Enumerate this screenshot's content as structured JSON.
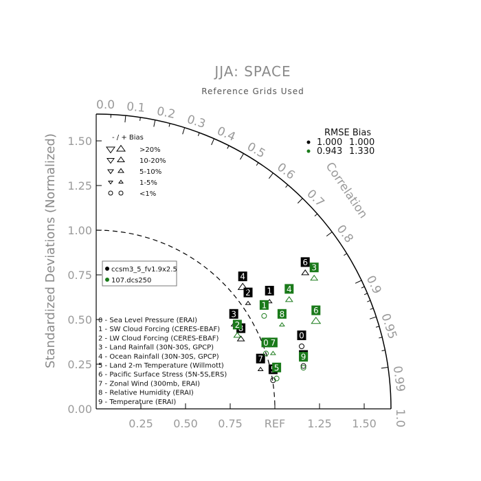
{
  "chart_data": {
    "type": "scatter",
    "title": "JJA: SPACE",
    "subtitle": "Reference Grids Used",
    "ylabel": "Standardized Deviations (Normalized)",
    "correlation_label": "Correlation",
    "ref_label": "REF",
    "max_std": 1.65,
    "x_ticks": [
      "0.25",
      "0.50",
      "0.75",
      "REF",
      "1.25",
      "1.50"
    ],
    "x_tick_values": [
      0.25,
      0.5,
      0.75,
      1.0,
      1.25,
      1.5
    ],
    "y_ticks": [
      "0.00",
      "0.25",
      "0.50",
      "0.75",
      "1.00",
      "1.25",
      "1.50"
    ],
    "y_tick_values": [
      0,
      0.25,
      0.5,
      0.75,
      1.0,
      1.25,
      1.5
    ],
    "corr_ticks": [
      "0.0",
      "0.1",
      "0.2",
      "0.3",
      "0.4",
      "0.5",
      "0.6",
      "0.7",
      "0.8",
      "0.9",
      "0.95",
      "0.99",
      "1.0"
    ],
    "corr_tick_values": [
      0.0,
      0.1,
      0.2,
      0.3,
      0.4,
      0.5,
      0.6,
      0.7,
      0.8,
      0.9,
      0.95,
      0.99,
      1.0
    ],
    "corr_small_ticks": [
      0.05,
      0.15,
      0.25,
      0.35,
      0.45,
      0.55,
      0.65,
      0.75,
      0.85,
      0.91,
      0.92,
      0.93,
      0.94,
      0.96,
      0.97,
      0.98
    ],
    "bias_legend": {
      "header": "- / +    Bias",
      "rows": [
        ">20%",
        "10-20%",
        "5-10%",
        "1-5%",
        "<1%"
      ]
    },
    "rmse_table": {
      "header": "RMSE  Bias",
      "rows": [
        {
          "rmse": "1.000",
          "bias": "1.000",
          "color": "#000000"
        },
        {
          "rmse": "0.943",
          "bias": "1.330",
          "color": "#1a7a1a"
        }
      ]
    },
    "cases_legend": [
      {
        "label": "ccsm3_5_fv1.9x2.5",
        "color": "#000000"
      },
      {
        "label": "107.dcs250",
        "color": "#1a7a1a"
      }
    ],
    "variables": [
      "0 - Sea Level Pressure (ERAI)",
      "1 - SW Cloud Forcing (CERES-EBAF)",
      "2 - LW Cloud Forcing (CERES-EBAF)",
      "3 - Land Rainfall (30N-30S, GPCP)",
      "4 - Ocean Rainfall (30N-30S, GPCP)",
      "5 - Land 2-m Temperature (Willmott)",
      "6 - Pacific Surface Stress (5N-5S,ERS)",
      "7 - Zonal Wind (300mb, ERAI)",
      "8 - Relative Humidity (ERAI)",
      "9 - Temperature (ERAI)"
    ],
    "series": [
      {
        "name": "ccsm3_5_fv1.9x2.5",
        "color": "#000000",
        "points": [
          {
            "id": "0",
            "x": 1.15,
            "y": 0.35,
            "marker": "circle"
          },
          {
            "id": "1",
            "x": 0.97,
            "y": 0.6,
            "marker": "up-small"
          },
          {
            "id": "2",
            "x": 0.85,
            "y": 0.59,
            "marker": "up-small"
          },
          {
            "id": "3",
            "x": 0.77,
            "y": 0.47,
            "marker": "up-small"
          },
          {
            "id": "4",
            "x": 0.82,
            "y": 0.68,
            "marker": "up-large"
          },
          {
            "id": "5",
            "x": 0.99,
            "y": 0.16,
            "marker": "circle"
          },
          {
            "id": "6",
            "x": 1.17,
            "y": 0.76,
            "marker": "up-medium"
          },
          {
            "id": "7",
            "x": 0.92,
            "y": 0.22,
            "marker": "up-small"
          },
          {
            "id": "8",
            "x": 0.81,
            "y": 0.39,
            "marker": "up-medium"
          },
          {
            "id": "9",
            "x": 1.16,
            "y": 0.24,
            "marker": "circle"
          }
        ]
      },
      {
        "name": "107.dcs250",
        "color": "#1a7a1a",
        "points": [
          {
            "id": "0",
            "x": 0.95,
            "y": 0.31,
            "marker": "circle"
          },
          {
            "id": "1",
            "x": 0.94,
            "y": 0.52,
            "marker": "circle"
          },
          {
            "id": "2",
            "x": 0.79,
            "y": 0.41,
            "marker": "up-medium"
          },
          {
            "id": "3",
            "x": 1.22,
            "y": 0.73,
            "marker": "up-medium"
          },
          {
            "id": "4",
            "x": 1.08,
            "y": 0.61,
            "marker": "up-medium"
          },
          {
            "id": "5",
            "x": 1.01,
            "y": 0.17,
            "marker": "circle"
          },
          {
            "id": "6",
            "x": 1.23,
            "y": 0.49,
            "marker": "up-large"
          },
          {
            "id": "7",
            "x": 0.99,
            "y": 0.31,
            "marker": "up-small"
          },
          {
            "id": "8",
            "x": 1.04,
            "y": 0.47,
            "marker": "up-small"
          },
          {
            "id": "9",
            "x": 1.16,
            "y": 0.23,
            "marker": "circle"
          }
        ]
      }
    ]
  }
}
